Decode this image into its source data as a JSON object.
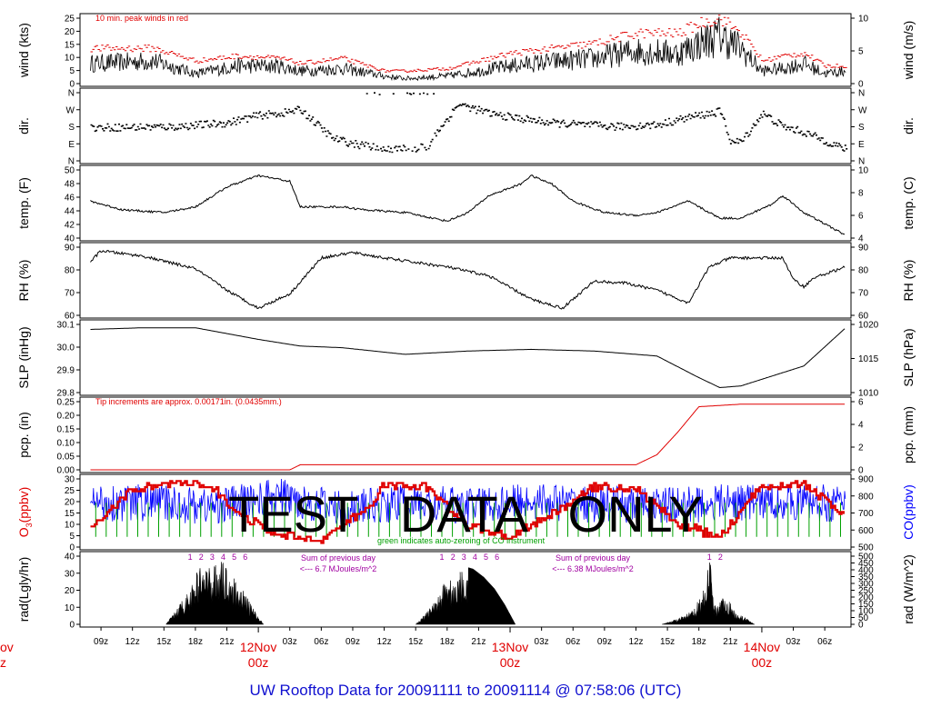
{
  "page": {
    "footer_title": "UW Rooftop Data for 20091111  to  20091114 @ 07:58:06  (UTC)",
    "watermark": "TEST   DATA   ONLY"
  },
  "colors": {
    "black": "#000000",
    "red": "#e00000",
    "blue": "#0000ff",
    "green": "#00a000",
    "purple": "#a000a0",
    "title_blue": "#1010d0"
  },
  "panels": [
    {
      "id": "wind",
      "left_label": "wind (kts)",
      "right_label": "wind (m/s)",
      "left_ticks": [
        "0",
        "5",
        "10",
        "15",
        "20",
        "25"
      ],
      "right_ticks": [
        "0",
        "5",
        "10"
      ],
      "annotation": "10 min. peak winds in red"
    },
    {
      "id": "dir",
      "left_label": "dir.",
      "right_label": "dir.",
      "left_ticks": [
        "N",
        "E",
        "S",
        "W",
        "N"
      ],
      "right_ticks": [
        "N",
        "E",
        "S",
        "W",
        "N"
      ]
    },
    {
      "id": "temp",
      "left_label": "temp. (F)",
      "right_label": "temp. (C)",
      "left_ticks": [
        "40",
        "42",
        "44",
        "46",
        "48",
        "50"
      ],
      "right_ticks": [
        "4",
        "6",
        "8",
        "10"
      ]
    },
    {
      "id": "rh",
      "left_label": "RH (%)",
      "right_label": "RH (%)",
      "left_ticks": [
        "60",
        "70",
        "80",
        "90"
      ],
      "right_ticks": [
        "60",
        "70",
        "80",
        "90"
      ]
    },
    {
      "id": "slp",
      "left_label": "SLP (inHg)",
      "right_label": "SLP (hPa)",
      "left_ticks": [
        "29.8",
        "29.9",
        "30.0",
        "30.1"
      ],
      "right_ticks": [
        "1010",
        "1015",
        "1020"
      ]
    },
    {
      "id": "pcp",
      "left_label": "pcp. (in)",
      "right_label": "pcp. (mm)",
      "left_ticks": [
        "0.00",
        "0.05",
        "0.10",
        "0.15",
        "0.20",
        "0.25"
      ],
      "right_ticks": [
        "0",
        "2",
        "4",
        "6"
      ],
      "annotation": "Tip increments are approx. 0.00171in. (0.0435mm.)"
    },
    {
      "id": "chem",
      "left_label_main": "O",
      "left_label_sub": "3",
      "left_label_rest": "(ppbv)",
      "right_label": "CO(ppbv)",
      "left_ticks": [
        "0",
        "5",
        "10",
        "15",
        "20",
        "25",
        "30"
      ],
      "right_ticks": [
        "500",
        "600",
        "700",
        "800",
        "900"
      ],
      "annotation": "green indicates auto-zeroing of CO instrument"
    },
    {
      "id": "rad",
      "left_label": "rad(Lgly/hr)",
      "right_label": "rad (W/m^2)",
      "left_ticks": [
        "0",
        "10",
        "20",
        "30",
        "40"
      ],
      "right_ticks": [
        "0",
        "50",
        "100",
        "150",
        "200",
        "250",
        "300",
        "350",
        "400",
        "450",
        "500"
      ],
      "day_sums": [
        {
          "line1": "Sum of previous day",
          "line2": "<--- 6.7 MJoules/m^2"
        },
        {
          "line1": "Sum of previous day",
          "line2": "<--- 6.38 MJoules/m^2"
        }
      ],
      "hour_marks": [
        {
          "day": 0,
          "labels": [
            "1",
            "2",
            "3",
            "4",
            "5",
            "6"
          ]
        },
        {
          "day": 1,
          "labels": [
            "1",
            "2",
            "3",
            "4",
            "5",
            "6"
          ]
        },
        {
          "day": 2,
          "labels": [
            "1",
            "2"
          ]
        }
      ]
    }
  ],
  "time_axis": {
    "hour_labels": [
      "09z",
      "12z",
      "15z",
      "18z",
      "21z",
      "03z",
      "06z",
      "09z",
      "12z",
      "15z",
      "18z",
      "21z",
      "03z",
      "06z",
      "09z",
      "12z",
      "15z",
      "18z",
      "21z",
      "03z",
      "06z"
    ],
    "date_labels": [
      {
        "date": "12Nov",
        "hour": "00z"
      },
      {
        "date": "13Nov",
        "hour": "00z"
      },
      {
        "date": "14Nov",
        "hour": "00z"
      }
    ],
    "cut_date_fragment": "ov",
    "cut_hour_fragment": "z"
  },
  "chart_data": {
    "type": "line",
    "x_units": "UTC hours since 2009-11-11 07:58",
    "series": [
      {
        "name": "wind",
        "units": "kts",
        "ylim": [
          0,
          26
        ],
        "x": [
          0,
          6,
          10,
          14,
          18,
          20,
          24,
          28,
          30,
          34,
          40,
          42,
          48,
          52,
          56,
          58,
          60,
          62,
          64,
          66,
          68,
          70,
          72
        ],
        "values": [
          8,
          9,
          4,
          7,
          7,
          5,
          6,
          3,
          2,
          3,
          7,
          8,
          10,
          13,
          12,
          16,
          19,
          14,
          5,
          6,
          8,
          4,
          5
        ]
      },
      {
        "name": "10 min. peak winds",
        "units": "kts",
        "ylim": [
          0,
          26
        ],
        "x": [
          0,
          6,
          10,
          14,
          18,
          20,
          24,
          28,
          30,
          34,
          40,
          42,
          48,
          52,
          56,
          58,
          60,
          62,
          64,
          66,
          68,
          70,
          72
        ],
        "values": [
          14,
          14,
          9,
          11,
          10,
          8,
          10,
          5,
          5,
          6,
          12,
          13,
          16,
          20,
          20,
          24,
          26,
          20,
          9,
          11,
          12,
          7,
          7
        ]
      },
      {
        "name": "temp",
        "units": "F",
        "ylim": [
          39.5,
          51.5
        ],
        "x": [
          0,
          3,
          7,
          10,
          13,
          16,
          19,
          20,
          24,
          26,
          30,
          34,
          36,
          38,
          41,
          42,
          44,
          46,
          49,
          52,
          54,
          57,
          60,
          62,
          65,
          66,
          68,
          70,
          72
        ],
        "values": [
          46,
          44.5,
          44,
          45,
          48.5,
          50.5,
          49.5,
          45,
          45,
          44.5,
          44,
          42.5,
          44,
          47,
          49,
          50.5,
          49,
          46,
          44,
          43.5,
          44,
          46,
          43,
          43,
          45.5,
          47,
          44,
          42,
          40
        ]
      },
      {
        "name": "RH",
        "units": "%",
        "ylim": [
          56,
          94
        ],
        "x": [
          0,
          1,
          5,
          10,
          13,
          16,
          19,
          22,
          25,
          28,
          34,
          38,
          42,
          45,
          48,
          51,
          54,
          57,
          59,
          61,
          64,
          66,
          67,
          68,
          69,
          72
        ],
        "values": [
          86,
          92,
          89,
          82,
          70,
          60,
          68,
          88,
          91,
          88,
          83,
          78,
          65,
          60,
          75,
          74,
          70,
          63,
          83,
          88,
          88,
          88,
          76,
          72,
          77,
          83
        ]
      },
      {
        "name": "SLP",
        "units": "inHg",
        "ylim": [
          29.73,
          30.14
        ],
        "x": [
          0,
          5,
          10,
          16,
          20,
          24,
          30,
          36,
          42,
          48,
          54,
          58,
          60,
          62,
          64,
          68,
          72
        ],
        "values": [
          30.11,
          30.12,
          30.12,
          30.05,
          30.01,
          30.0,
          29.96,
          29.98,
          29.99,
          29.98,
          29.95,
          29.82,
          29.76,
          29.77,
          29.81,
          29.89,
          30.12
        ]
      },
      {
        "name": "pcp",
        "units": "in",
        "ylim": [
          0,
          0.27
        ],
        "x": [
          0,
          14,
          19,
          20,
          48,
          52,
          54,
          56,
          58,
          62,
          72
        ],
        "values": [
          0,
          0,
          0,
          0.02,
          0.02,
          0.02,
          0.06,
          0.15,
          0.25,
          0.26,
          0.26
        ]
      },
      {
        "name": "O3",
        "units": "ppbv",
        "ylim": [
          0,
          33
        ],
        "x": [
          0,
          4,
          8,
          10,
          12,
          14,
          18,
          22,
          26,
          28,
          32,
          36,
          40,
          44,
          48,
          52,
          56,
          60,
          64,
          68,
          72
        ],
        "values": [
          10,
          28,
          31,
          30,
          27,
          16,
          5,
          4,
          17,
          30,
          29,
          10,
          5,
          16,
          29,
          28,
          11,
          5,
          30,
          30,
          15
        ]
      },
      {
        "name": "CO",
        "units": "ppbv",
        "ylim": [
          500,
          900
        ],
        "x": [
          0,
          6,
          12,
          18,
          24,
          30,
          36,
          42,
          48,
          54,
          60,
          66,
          72
        ],
        "values": [
          760,
          760,
          740,
          800,
          720,
          760,
          740,
          770,
          750,
          740,
          760,
          770,
          750
        ]
      }
    ],
    "solar": {
      "name": "rad",
      "units": "Lgly/hr",
      "ylim": [
        0,
        42
      ],
      "days": [
        {
          "x": [
            7.2,
            9.5,
            10.5,
            11.5,
            12.0,
            12.8,
            13.5,
            14.5,
            15.5,
            16.5
          ],
          "values": [
            0,
            22,
            38,
            34,
            40,
            38,
            30,
            22,
            10,
            0
          ]
        },
        {
          "x": [
            31.0,
            33.0,
            34.0,
            34.5,
            35.5,
            36.5,
            37.5,
            38.5,
            39.5,
            40.5
          ],
          "values": [
            0,
            15,
            33,
            25,
            36,
            34,
            29,
            22,
            12,
            0
          ]
        },
        {
          "x": [
            54.5,
            56.5,
            57.5,
            58.5,
            59.0,
            59.5,
            60.5,
            61.5,
            62.5,
            63.3
          ],
          "values": [
            0,
            5,
            9,
            22,
            45,
            12,
            18,
            8,
            4,
            0
          ]
        }
      ]
    },
    "xlim": [
      -1,
      72.5
    ]
  }
}
